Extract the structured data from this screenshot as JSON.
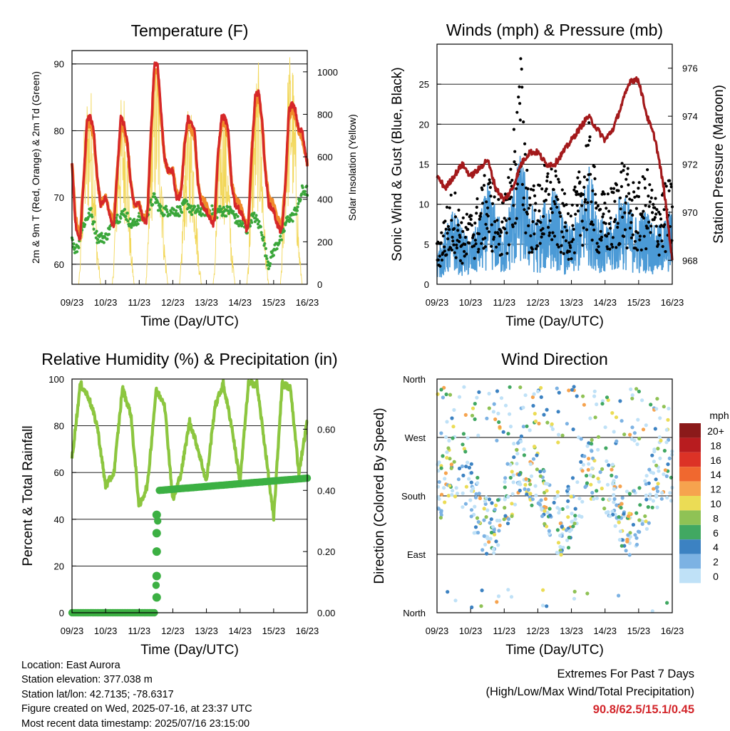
{
  "colors": {
    "temp_2m": "#d62728",
    "temp_9m": "#f08a2a",
    "dewpoint": "#3aa63a",
    "solar": "#f2d75a",
    "gust": "#000000",
    "wind": "#4b9ad6",
    "pressure": "#a3191b",
    "humidity": "#8cc63f",
    "precip": "#3cb043",
    "extremes": "#d3262b"
  },
  "time_ticks": [
    "09/23",
    "10/23",
    "11/23",
    "12/23",
    "13/23",
    "14/23",
    "15/23",
    "16/23"
  ],
  "chart_data": [
    {
      "id": "temperature",
      "type": "line",
      "title": "Temperature (F)",
      "xlabel": "Time (Day/UTC)",
      "ylabel": "2m & 9m T (Red, Orange) & 2m Td (Green)",
      "y2label": "Solar Insolation (Yellow)",
      "ylim": [
        57,
        92
      ],
      "yticks": [
        60,
        70,
        80,
        90
      ],
      "y2lim": [
        0,
        1100
      ],
      "y2ticks": [
        0,
        200,
        400,
        600,
        800,
        1000
      ],
      "grid": true,
      "x_days": [
        0,
        0.1,
        0.2,
        0.25,
        0.35,
        0.45,
        0.55,
        0.65,
        0.75,
        0.85,
        1,
        1.1,
        1.2,
        1.25,
        1.35,
        1.45,
        1.55,
        1.65,
        1.75,
        1.85,
        2,
        2.1,
        2.2,
        2.25,
        2.35,
        2.45,
        2.55,
        2.65,
        2.75,
        2.85,
        3,
        3.1,
        3.2,
        3.25,
        3.35,
        3.45,
        3.55,
        3.65,
        3.75,
        3.85,
        4,
        4.1,
        4.2,
        4.25,
        4.35,
        4.45,
        4.55,
        4.65,
        4.75,
        4.85,
        5,
        5.1,
        5.2,
        5.25,
        5.35,
        5.45,
        5.55,
        5.65,
        5.75,
        5.85,
        6,
        6.1,
        6.2,
        6.25,
        6.35,
        6.45,
        6.55,
        6.65,
        6.75,
        6.85,
        7
      ],
      "series": [
        {
          "key": "temp_2m",
          "values": [
            75,
            66,
            64,
            64,
            73,
            82,
            82,
            80,
            73,
            69,
            70,
            68,
            66,
            66,
            74,
            82,
            81,
            78,
            72,
            69,
            69,
            67,
            66,
            68,
            80,
            90,
            90,
            83,
            76,
            74,
            74,
            70,
            70,
            71,
            78,
            82,
            81,
            80,
            72,
            69,
            68,
            67,
            66,
            67,
            77,
            82,
            82,
            80,
            72,
            69,
            68,
            67,
            65,
            66,
            77,
            85,
            86,
            82,
            74,
            69,
            68,
            66,
            65,
            65,
            72,
            83,
            84,
            83,
            80,
            80,
            75
          ]
        },
        {
          "key": "temp_9m",
          "values": [
            75,
            67,
            65,
            65,
            73,
            81,
            81,
            79,
            73,
            69,
            70,
            68,
            67,
            67,
            74,
            81,
            80,
            78,
            72,
            69,
            69,
            67,
            67,
            68,
            79,
            89,
            89,
            82,
            76,
            74,
            74,
            71,
            70,
            71,
            78,
            81,
            80,
            79,
            72,
            70,
            69,
            67,
            67,
            67,
            77,
            81,
            81,
            79,
            72,
            70,
            69,
            67,
            66,
            66,
            77,
            84,
            85,
            82,
            74,
            70,
            69,
            67,
            66,
            66,
            72,
            82,
            83,
            82,
            80,
            79,
            75
          ]
        },
        {
          "key": "dewpoint",
          "values": [
            64,
            62,
            63,
            65,
            66,
            67,
            68,
            66,
            64,
            64,
            64,
            65,
            66,
            67,
            67,
            67,
            68,
            67,
            66,
            66,
            67,
            67,
            67,
            68,
            69,
            70,
            69,
            68,
            68,
            68,
            68,
            68,
            68,
            68,
            69,
            69,
            68,
            68,
            68,
            68,
            68,
            68,
            68,
            67,
            68,
            68,
            68,
            68,
            68,
            67,
            66,
            66,
            65,
            66,
            67,
            67,
            66,
            65,
            62,
            60,
            62,
            63,
            64,
            64,
            66,
            67,
            67,
            68,
            69,
            71,
            71
          ]
        },
        {
          "key": "solar",
          "values": [
            0,
            0,
            0,
            150,
            650,
            850,
            900,
            650,
            200,
            0,
            0,
            0,
            0,
            150,
            650,
            800,
            850,
            600,
            200,
            0,
            0,
            0,
            0,
            150,
            750,
            950,
            1000,
            700,
            200,
            0,
            0,
            0,
            0,
            120,
            600,
            750,
            800,
            550,
            180,
            0,
            0,
            0,
            0,
            120,
            600,
            750,
            800,
            550,
            180,
            0,
            0,
            0,
            0,
            130,
            650,
            900,
            950,
            650,
            200,
            0,
            0,
            0,
            0,
            150,
            700,
            1000,
            1050,
            700,
            200,
            0,
            0
          ],
          "axis": "right"
        }
      ]
    },
    {
      "id": "winds",
      "type": "scatter",
      "title": "Winds (mph) & Pressure (mb)",
      "xlabel": "Time (Day/UTC)",
      "ylabel": "Sonic Wind & Gust (Blue, Black)",
      "y2label": "Station Pressure (Maroon)",
      "ylim": [
        0,
        30
      ],
      "yticks": [
        0,
        5,
        10,
        15,
        20,
        25
      ],
      "y2lim": [
        967,
        977
      ],
      "y2ticks": [
        968,
        970,
        972,
        974,
        976
      ],
      "grid": true,
      "x_days": [
        0,
        0.25,
        0.5,
        0.75,
        1,
        1.25,
        1.5,
        1.75,
        2,
        2.25,
        2.5,
        2.75,
        3,
        3.25,
        3.5,
        3.75,
        4,
        4.25,
        4.5,
        4.75,
        5,
        5.25,
        5.5,
        5.75,
        6,
        6.25,
        6.5,
        6.75,
        7
      ],
      "series": [
        {
          "key": "gust",
          "values": [
            5,
            9,
            12,
            8,
            9,
            11,
            14,
            12,
            10,
            18,
            28,
            12,
            12,
            15,
            14,
            11,
            10,
            14,
            20,
            12,
            11,
            12,
            16,
            13,
            12,
            14,
            11,
            12,
            13
          ]
        },
        {
          "key": "wind",
          "values": [
            3,
            5,
            7,
            5,
            4,
            6,
            9,
            7,
            5,
            9,
            12,
            8,
            6,
            8,
            9,
            6,
            5,
            7,
            11,
            8,
            5,
            6,
            9,
            7,
            6,
            7,
            5,
            6,
            7
          ]
        },
        {
          "key": "pressure",
          "values": [
            971.5,
            971,
            971.5,
            972,
            971.5,
            971.8,
            972.2,
            971,
            970.5,
            971,
            972,
            972.5,
            972.5,
            972,
            972,
            972.5,
            973,
            973.5,
            974,
            973.5,
            973,
            973.5,
            974.5,
            975.5,
            975.5,
            974,
            973,
            971,
            968
          ],
          "axis": "right"
        }
      ]
    },
    {
      "id": "humidity",
      "type": "line",
      "title": "Relative Humidity (%) & Precipitation (in)",
      "xlabel": "Time (Day/UTC)",
      "ylabel": "Percent & Total Rainfall",
      "ylim": [
        0,
        100
      ],
      "yticks": [
        0,
        20,
        40,
        60,
        80,
        100
      ],
      "y2lim": [
        0,
        0.764
      ],
      "y2ticks": [
        "0.00",
        "0.20",
        "0.40",
        "0.60"
      ],
      "grid": true,
      "x_days": [
        0,
        0.25,
        0.5,
        0.75,
        1,
        1.25,
        1.5,
        1.75,
        2,
        2.25,
        2.5,
        2.75,
        3,
        3.25,
        3.5,
        3.75,
        4,
        4.25,
        4.5,
        4.75,
        5,
        5.25,
        5.5,
        5.75,
        6,
        6.25,
        6.5,
        6.75,
        7
      ],
      "series": [
        {
          "key": "humidity",
          "values": [
            66,
            98,
            92,
            80,
            54,
            60,
            96,
            85,
            45,
            55,
            95,
            90,
            48,
            60,
            82,
            70,
            56,
            88,
            98,
            80,
            56,
            98,
            98,
            70,
            40,
            98,
            96,
            60,
            82
          ]
        },
        {
          "key": "precip",
          "axis": "right",
          "step_x": [
            0,
            2.45,
            2.5,
            2.55,
            2.6,
            7
          ],
          "step_y": [
            0,
            0,
            0.09,
            0.3,
            0.4,
            0.44
          ]
        }
      ]
    },
    {
      "id": "direction",
      "type": "scatter",
      "title": "Wind Direction",
      "xlabel": "Time (Day/UTC)",
      "ylabel": "Direction (Colored By Speed)",
      "y_categories": [
        "North",
        "East",
        "South",
        "West",
        "North"
      ],
      "grid": true,
      "colorbar": {
        "title": "mph",
        "labels": [
          "20+",
          "18",
          "16",
          "14",
          "12",
          "10",
          "8",
          "6",
          "4",
          "2",
          "0"
        ],
        "colors": [
          "#8b1a1a",
          "#b81c1f",
          "#dc3226",
          "#f0682f",
          "#f6a34e",
          "#ebdc55",
          "#8fc255",
          "#41a862",
          "#3c82c2",
          "#7cb2e3",
          "#bfe1f7"
        ]
      }
    }
  ],
  "footer": {
    "location": "Location: East Aurora",
    "elevation": "Station elevation: 377.038 m",
    "latlon": "Station lat/lon: 42.7135; -78.6317",
    "created": "Figure created on Wed, 2025-07-16, at 23:37 UTC",
    "recent": "Most recent data timestamp: 2025/07/16 23:15:00"
  },
  "extremes": {
    "title": "Extremes For Past 7 Days",
    "subtitle": "(High/Low/Max Wind/Total Precipitation)",
    "values": "90.8/62.5/15.1/0.45"
  }
}
